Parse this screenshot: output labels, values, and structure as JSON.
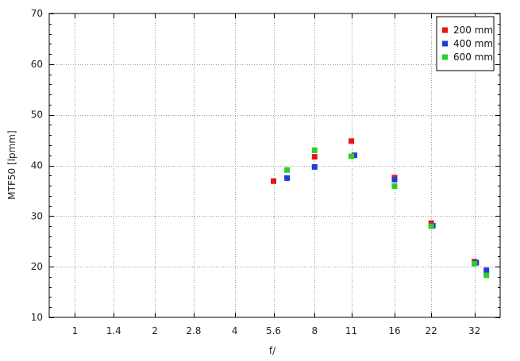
{
  "chart_data": {
    "type": "scatter",
    "xlabel": "f/",
    "ylabel": "MTF50 [lpmm]",
    "ylim": [
      10,
      70
    ],
    "yticks": [
      10,
      20,
      30,
      40,
      50,
      60,
      70
    ],
    "x_scale": "log",
    "xlim": [
      0.8,
      40
    ],
    "xticks": [
      1,
      1.4,
      2,
      2.8,
      4,
      5.6,
      8,
      11,
      16,
      22,
      32
    ],
    "xtick_labels": [
      "1",
      "1.4",
      "2",
      "2.8",
      "4",
      "5.6",
      "8",
      "11",
      "16",
      "22",
      "32"
    ],
    "grid": true,
    "legend_position": "top-right",
    "series": [
      {
        "name": "200 mm",
        "color": "#e8141b",
        "points": [
          [
            5.6,
            36.9
          ],
          [
            8,
            41.7
          ],
          [
            11,
            44.8
          ],
          [
            16,
            37.6
          ],
          [
            22,
            28.6
          ],
          [
            32,
            21.0
          ]
        ]
      },
      {
        "name": "400 mm",
        "color": "#1e3fd6",
        "points": [
          [
            6.3,
            37.5
          ],
          [
            8,
            39.7
          ],
          [
            11.3,
            42.0
          ],
          [
            16,
            37.2
          ],
          [
            22.3,
            28.1
          ],
          [
            32.5,
            20.8
          ],
          [
            35.5,
            19.3
          ]
        ]
      },
      {
        "name": "600 mm",
        "color": "#2fcc2a",
        "points": [
          [
            6.3,
            39.1
          ],
          [
            8,
            43.0
          ],
          [
            11,
            41.8
          ],
          [
            16,
            35.9
          ],
          [
            22,
            28.0
          ],
          [
            32,
            20.6
          ],
          [
            35.5,
            18.3
          ]
        ]
      }
    ]
  }
}
